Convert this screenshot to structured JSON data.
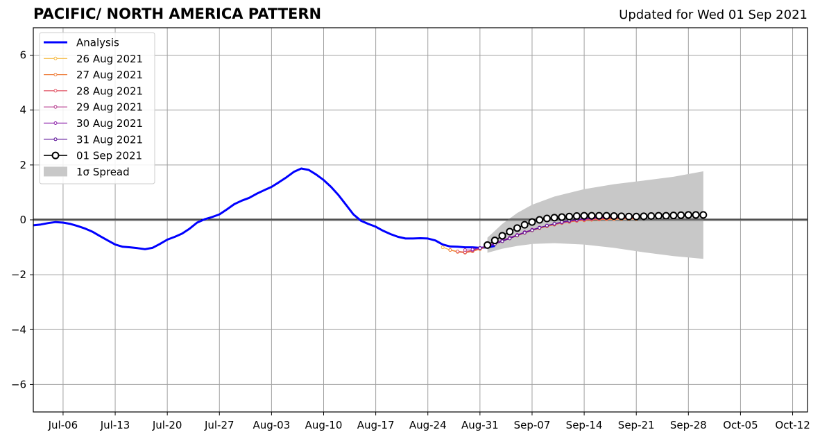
{
  "title": "PACIFIC/ NORTH AMERICA PATTERN",
  "subtitle": "Updated for Wed 01 Sep 2021",
  "chart_data": {
    "type": "line",
    "xlabel": "",
    "ylabel": "",
    "x_axis": {
      "type": "date",
      "range": [
        "2021-07-02",
        "2021-10-14"
      ],
      "ticks": [
        "2021-07-06",
        "2021-07-13",
        "2021-07-20",
        "2021-07-27",
        "2021-08-03",
        "2021-08-10",
        "2021-08-17",
        "2021-08-24",
        "2021-08-31",
        "2021-09-07",
        "2021-09-14",
        "2021-09-21",
        "2021-09-28",
        "2021-10-05",
        "2021-10-12"
      ],
      "tick_labels": [
        "Jul-06",
        "Jul-13",
        "Jul-20",
        "Jul-27",
        "Aug-03",
        "Aug-10",
        "Aug-17",
        "Aug-24",
        "Aug-31",
        "Sep-07",
        "Sep-14",
        "Sep-21",
        "Sep-28",
        "Oct-05",
        "Oct-12"
      ]
    },
    "ylim": [
      -7,
      7
    ],
    "yticks": [
      -6,
      -4,
      -2,
      0,
      2,
      4,
      6
    ],
    "ytick_labels": [
      "−6",
      "−4",
      "−2",
      "0",
      "2",
      "4",
      "6"
    ],
    "grid": true,
    "zero_line": true,
    "legend_position": "top-left",
    "analysis": {
      "name": "Analysis",
      "color": "#0000ff",
      "start": "2021-07-02",
      "step_days": 1,
      "values": [
        -0.2,
        -0.17,
        -0.12,
        -0.08,
        -0.1,
        -0.15,
        -0.23,
        -0.32,
        -0.44,
        -0.6,
        -0.75,
        -0.9,
        -0.98,
        -1.0,
        -1.03,
        -1.07,
        -1.02,
        -0.88,
        -0.72,
        -0.62,
        -0.5,
        -0.32,
        -0.1,
        0.02,
        0.1,
        0.2,
        0.38,
        0.57,
        0.7,
        0.8,
        0.95,
        1.08,
        1.2,
        1.37,
        1.55,
        1.75,
        1.87,
        1.82,
        1.65,
        1.45,
        1.2,
        0.9,
        0.55,
        0.2,
        -0.03,
        -0.15,
        -0.25,
        -0.4,
        -0.52,
        -0.62,
        -0.68,
        -0.68,
        -0.67,
        -0.68,
        -0.75,
        -0.9,
        -0.97,
        -0.98,
        -1.0,
        -1.0,
        -1.02,
        -1.0,
        -0.95
      ]
    },
    "forecasts": [
      {
        "name": "26 Aug 2021",
        "color": "#f5b942",
        "start": "2021-08-26",
        "values": [
          -1.0,
          -1.1,
          -1.15,
          -1.17,
          -1.12,
          -1.05,
          -0.95,
          -0.85,
          -0.75,
          -0.65,
          -0.55,
          -0.45,
          -0.36,
          -0.28,
          -0.22,
          -0.16,
          -0.11,
          -0.07,
          -0.04,
          -0.02,
          0.0,
          0.01,
          0.02,
          0.02,
          0.03,
          0.03,
          0.03
        ]
      },
      {
        "name": "27 Aug 2021",
        "color": "#ee7d3a",
        "start": "2021-08-27",
        "values": [
          -1.1,
          -1.17,
          -1.2,
          -1.15,
          -1.07,
          -0.98,
          -0.88,
          -0.78,
          -0.68,
          -0.58,
          -0.48,
          -0.39,
          -0.31,
          -0.24,
          -0.18,
          -0.12,
          -0.08,
          -0.04,
          -0.02,
          0.0,
          0.01,
          0.02,
          0.02,
          0.03,
          0.03,
          0.03
        ]
      },
      {
        "name": "28 Aug 2021",
        "color": "#e05263",
        "start": "2021-08-28",
        "values": [
          -1.15,
          -1.18,
          -1.12,
          -1.04,
          -0.95,
          -0.85,
          -0.75,
          -0.65,
          -0.55,
          -0.46,
          -0.37,
          -0.29,
          -0.22,
          -0.16,
          -0.11,
          -0.06,
          -0.03,
          0.0,
          0.02,
          0.03,
          0.04,
          0.05,
          0.05,
          0.05,
          0.06
        ]
      },
      {
        "name": "29 Aug 2021",
        "color": "#b5378c",
        "start": "2021-08-29",
        "values": [
          -1.1,
          -1.1,
          -1.03,
          -0.95,
          -0.85,
          -0.75,
          -0.65,
          -0.55,
          -0.45,
          -0.36,
          -0.28,
          -0.21,
          -0.15,
          -0.1,
          -0.05,
          -0.01,
          0.02,
          0.04,
          0.05,
          0.06,
          0.06,
          0.07,
          0.07,
          0.07
        ]
      },
      {
        "name": "30 Aug 2021",
        "color": "#8a1ea8",
        "start": "2021-08-30",
        "values": [
          -1.08,
          -1.02,
          -0.94,
          -0.85,
          -0.75,
          -0.65,
          -0.55,
          -0.45,
          -0.36,
          -0.28,
          -0.21,
          -0.15,
          -0.09,
          -0.04,
          0.0,
          0.03,
          0.06,
          0.08,
          0.09,
          0.1,
          0.1,
          0.11,
          0.11
        ]
      },
      {
        "name": "31 Aug 2021",
        "color": "#5a0f96",
        "start": "2021-08-31",
        "values": [
          -1.03,
          -0.97,
          -0.88,
          -0.78,
          -0.68,
          -0.57,
          -0.47,
          -0.38,
          -0.29,
          -0.21,
          -0.14,
          -0.08,
          -0.03,
          0.01,
          0.05,
          0.08,
          0.1,
          0.12,
          0.13,
          0.14,
          0.15,
          0.15
        ]
      },
      {
        "name": "01 Sep 2021",
        "color": "#000000",
        "start": "2021-09-01",
        "markers": "open-circle",
        "values": [
          -0.92,
          -0.75,
          -0.58,
          -0.43,
          -0.3,
          -0.18,
          -0.08,
          0.0,
          0.05,
          0.08,
          0.1,
          0.12,
          0.14,
          0.15,
          0.15,
          0.15,
          0.15,
          0.14,
          0.13,
          0.12,
          0.12,
          0.13,
          0.14,
          0.15,
          0.15,
          0.16,
          0.17,
          0.18,
          0.18,
          0.18
        ]
      }
    ],
    "spread": {
      "name": "1σ Spread",
      "color": "#c8c8c8",
      "dates": [
        "2021-09-01",
        "2021-09-03",
        "2021-09-05",
        "2021-09-07",
        "2021-09-10",
        "2021-09-14",
        "2021-09-18",
        "2021-09-22",
        "2021-09-26",
        "2021-09-30"
      ],
      "upper": [
        -0.65,
        -0.15,
        0.25,
        0.55,
        0.85,
        1.12,
        1.3,
        1.43,
        1.57,
        1.77
      ],
      "lower": [
        -1.2,
        -1.05,
        -0.95,
        -0.88,
        -0.85,
        -0.9,
        -1.02,
        -1.18,
        -1.32,
        -1.42
      ]
    }
  }
}
